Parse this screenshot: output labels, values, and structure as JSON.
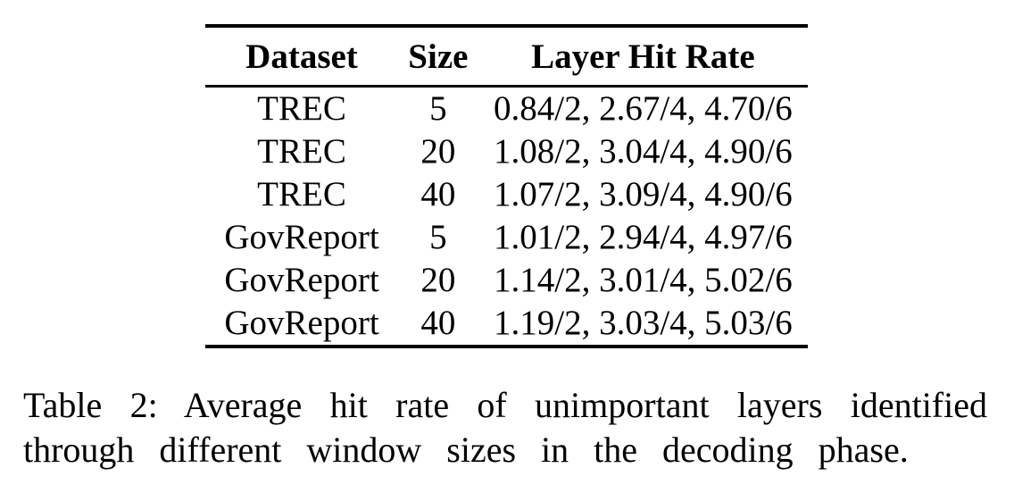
{
  "page": {
    "background": "#ffffff",
    "text_color": "#000000",
    "rule_color": "#000000"
  },
  "table2": {
    "columns": [
      {
        "key": "dataset",
        "label": "Dataset"
      },
      {
        "key": "size",
        "label": "Size"
      },
      {
        "key": "hit_rate",
        "label": "Layer Hit Rate"
      }
    ],
    "rows": [
      {
        "dataset": "TREC",
        "size": "5",
        "hit_rate": "0.84/2, 2.67/4, 4.70/6"
      },
      {
        "dataset": "TREC",
        "size": "20",
        "hit_rate": "1.08/2, 3.04/4, 4.90/6"
      },
      {
        "dataset": "TREC",
        "size": "40",
        "hit_rate": "1.07/2, 3.09/4, 4.90/6"
      },
      {
        "dataset": "GovReport",
        "size": "5",
        "hit_rate": "1.01/2, 2.94/4, 4.97/6"
      },
      {
        "dataset": "GovReport",
        "size": "20",
        "hit_rate": "1.14/2, 3.01/4, 5.02/6"
      },
      {
        "dataset": "GovReport",
        "size": "40",
        "hit_rate": "1.19/2, 3.03/4, 5.03/6"
      }
    ]
  },
  "caption": "Table 2: Average hit rate of unimportant layers identified through different window sizes in the decoding phase."
}
